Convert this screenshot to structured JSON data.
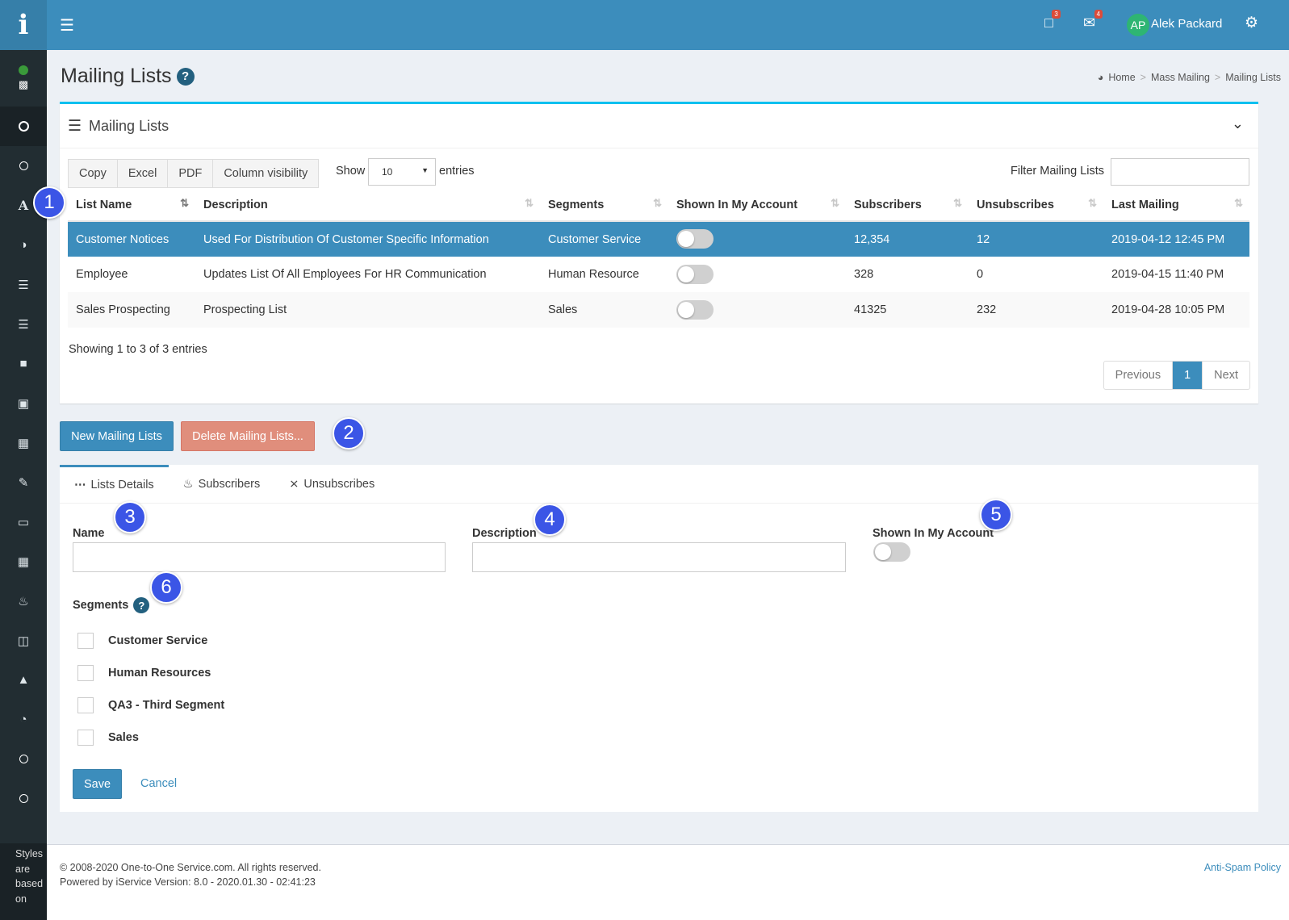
{
  "sidebar": {
    "logo": "i",
    "note": [
      "Styles",
      "are",
      "based",
      "on"
    ]
  },
  "topbar": {
    "chat_badge": "3",
    "mail_badge": "4",
    "avatar_initials": "AP",
    "user_name": "Alek Packard"
  },
  "page": {
    "title": "Mailing Lists",
    "breadcrumb": {
      "home": "Home",
      "sep": ">",
      "parent": "Mass Mailing",
      "current": "Mailing Lists"
    }
  },
  "box": {
    "title": "Mailing Lists",
    "buttons": {
      "copy": "Copy",
      "excel": "Excel",
      "pdf": "PDF",
      "colvis": "Column visibility"
    },
    "show_label": "Show",
    "show_value": "10",
    "entries_label": "entries",
    "filter_label": "Filter Mailing Lists",
    "columns": [
      "List Name",
      "Description",
      "Segments",
      "Shown In My Account",
      "Subscribers",
      "Unsubscribes",
      "Last Mailing"
    ],
    "rows": [
      {
        "name": "Customer Notices",
        "description": "Used For Distribution Of Customer Specific Information",
        "segments": "Customer Service",
        "shown": false,
        "subscribers": "12,354",
        "unsubscribes": "12",
        "last_mailing": "2019-04-12 12:45 PM"
      },
      {
        "name": "Employee",
        "description": "Updates List Of All Employees For HR Communication",
        "segments": "Human Resource",
        "shown": false,
        "subscribers": "328",
        "unsubscribes": "0",
        "last_mailing": "2019-04-15 11:40 PM"
      },
      {
        "name": "Sales Prospecting",
        "description": "Prospecting List",
        "segments": "Sales",
        "shown": false,
        "subscribers": "41325",
        "unsubscribes": "232",
        "last_mailing": "2019-04-28 10:05 PM"
      }
    ],
    "showing": "Showing 1 to 3 of 3 entries",
    "pager": {
      "prev": "Previous",
      "current": "1",
      "next": "Next"
    }
  },
  "actions": {
    "new": "New Mailing Lists",
    "delete": "Delete Mailing Lists..."
  },
  "markers": [
    "1",
    "2",
    "3",
    "4",
    "5",
    "6"
  ],
  "form": {
    "tabs": {
      "details": "Lists Details",
      "subscribers": "Subscribers",
      "unsubscribes": "Unsubscribes"
    },
    "name_label": "Name",
    "description_label": "Description",
    "shown_label": "Shown In My Account",
    "shown_value": false,
    "segments_label": "Segments",
    "segments": [
      {
        "label": "Customer Service",
        "checked": false
      },
      {
        "label": "Human Resources",
        "checked": false
      },
      {
        "label": "QA3 - Third Segment",
        "checked": false
      },
      {
        "label": "Sales",
        "checked": false
      }
    ],
    "save": "Save",
    "cancel": "Cancel"
  },
  "footer": {
    "copyright": "© 2008-2020 One-to-One Service.com. All rights reserved.",
    "powered": "Powered by iService Version: 8.0 - 2020.01.30 - 02:41:23",
    "policy": "Anti-Spam Policy"
  },
  "colors": {
    "primary": "#3c8dbc",
    "sidebar": "#222d32",
    "danger_light": "#e08e7c",
    "marker": "#3b55e6",
    "accent_top": "#00c0ef"
  }
}
